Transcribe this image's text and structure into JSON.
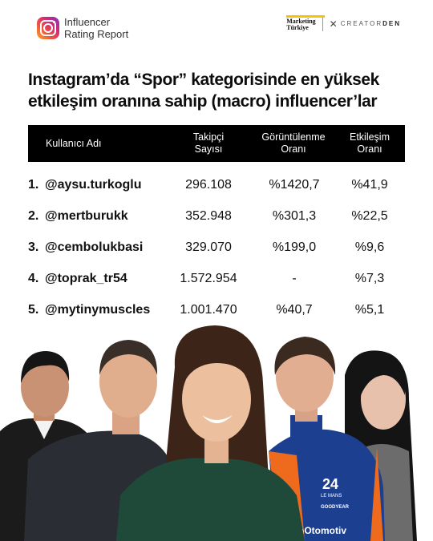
{
  "header": {
    "brand_line1": "Influencer",
    "brand_line2": "Rating Report",
    "partner1_line1": "Marketing",
    "partner1_line2": "Türkiye",
    "partner2_a": "CREATOR",
    "partner2_b": "DEN"
  },
  "title": "Instagram’da “Spor” kategorisinde en yüksek etkileşim oranına sahip (macro) influencer’lar",
  "table": {
    "headers": {
      "user": "Kullanıcı Adı",
      "followers_1": "Takipçi",
      "followers_2": "Sayısı",
      "views_1": "Görüntülenme",
      "views_2": "Oranı",
      "engagement_1": "Etkileşim",
      "engagement_2": "Oranı"
    },
    "rows": [
      {
        "rank": "1.",
        "user": "@aysu.turkoglu",
        "followers": "296.108",
        "views": "%1420,7",
        "engagement": "%41,9"
      },
      {
        "rank": "2.",
        "user": "@mertburukk",
        "followers": "352.948",
        "views": "%301,3",
        "engagement": "%22,5"
      },
      {
        "rank": "3.",
        "user": "@cembolukbasi",
        "followers": "329.070",
        "views": "%199,0",
        "engagement": "%9,6"
      },
      {
        "rank": "4.",
        "user": "@toprak_tr54",
        "followers": "1.572.954",
        "views": "-",
        "engagement": "%7,3"
      },
      {
        "rank": "5.",
        "user": "@mytinymuscles",
        "followers": "1.001.470",
        "views": "%40,7",
        "engagement": "%5,1"
      }
    ]
  },
  "photo": {
    "jersey_text_1": "24",
    "jersey_text_2": "LE MANS",
    "jersey_text_3": "GOODYEAR",
    "jersey_text_4": "nOtomotiv"
  },
  "colors": {
    "header_bg": "#000000",
    "accent_yellow": "#f5c400",
    "jersey_blue": "#1d3f8f",
    "jersey_orange": "#ee6a1d"
  }
}
